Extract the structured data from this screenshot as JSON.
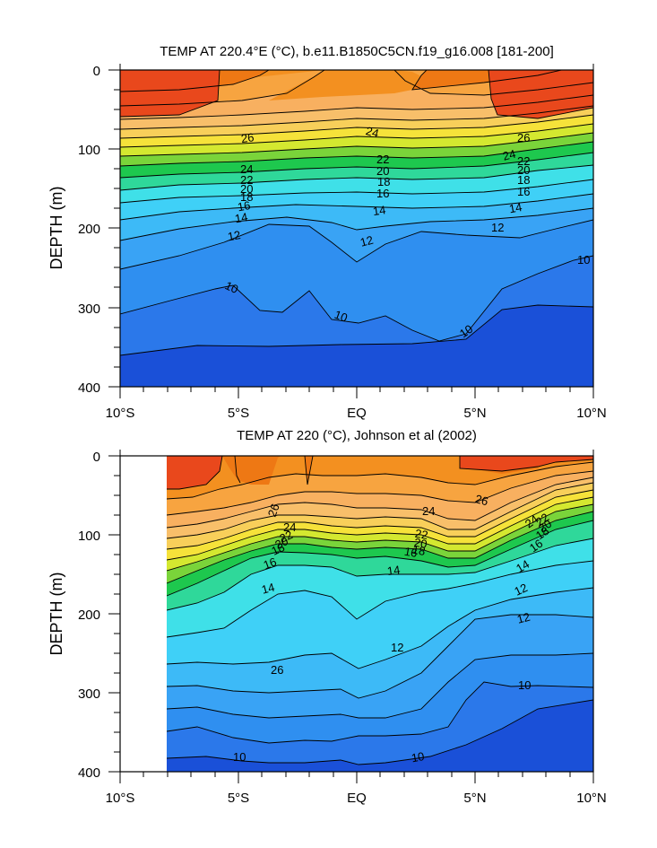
{
  "chart_data": [
    {
      "type": "contour",
      "title": "TEMP AT 220.4°E (°C), b.e11.B1850C5CN.f19_g16.008 [181-200]",
      "ylabel": "DEPTH (m)",
      "xlabel": "",
      "x_ticks": [
        "10°S",
        "5°S",
        "EQ",
        "5°N",
        "10°N"
      ],
      "y_ticks": [
        "0",
        "100",
        "200",
        "300",
        "400"
      ],
      "xlim": [
        -10,
        10
      ],
      "ylim": [
        0,
        400
      ],
      "y_reversed": true,
      "contour_interval": 1,
      "contour_labels": [
        "26",
        "24",
        "22",
        "20",
        "18",
        "16",
        "14",
        "12",
        "10",
        "26",
        "24",
        "22",
        "20",
        "18",
        "16",
        "14",
        "12",
        "10",
        "24",
        "22",
        "20",
        "18",
        "16",
        "14",
        "12",
        "10",
        "10"
      ],
      "thermocline_depth_20C": [
        [
          -10,
          158
        ],
        [
          -5,
          155
        ],
        [
          0,
          140
        ],
        [
          5,
          148
        ],
        [
          10,
          135
        ]
      ],
      "isotherm_10C_depth": [
        [
          -10,
          410
        ],
        [
          -5,
          280
        ],
        [
          -3,
          310
        ],
        [
          -2,
          280
        ],
        [
          0,
          320
        ],
        [
          3,
          340
        ],
        [
          5,
          320
        ],
        [
          10,
          245
        ]
      ]
    },
    {
      "type": "contour",
      "title": "TEMP AT 220 (°C), Johnson et al (2002)",
      "ylabel": "DEPTH (m)",
      "xlabel": "",
      "x_ticks": [
        "10°S",
        "5°S",
        "EQ",
        "5°N",
        "10°N"
      ],
      "y_ticks": [
        "0",
        "100",
        "200",
        "300",
        "400"
      ],
      "xlim": [
        -10,
        10
      ],
      "ylim": [
        0,
        400
      ],
      "y_reversed": true,
      "data_xrange": [
        -8,
        10
      ],
      "contour_interval": 1,
      "contour_labels": [
        "26",
        "26",
        "24",
        "22",
        "20",
        "18",
        "16",
        "14",
        "24",
        "22",
        "20",
        "18",
        "16",
        "14",
        "12",
        "12",
        "10",
        "10",
        "10",
        "26",
        "24",
        "22",
        "20",
        "18",
        "16",
        "14",
        "12"
      ],
      "thermocline_depth_20C": [
        [
          -8,
          135
        ],
        [
          -5,
          118
        ],
        [
          0,
          112
        ],
        [
          5,
          140
        ],
        [
          8,
          85
        ],
        [
          10,
          60
        ]
      ],
      "isotherm_10C_depth": [
        [
          -8,
          360
        ],
        [
          -5,
          380
        ],
        [
          0,
          375
        ],
        [
          3,
          375
        ],
        [
          5,
          290
        ],
        [
          10,
          298
        ]
      ]
    }
  ]
}
